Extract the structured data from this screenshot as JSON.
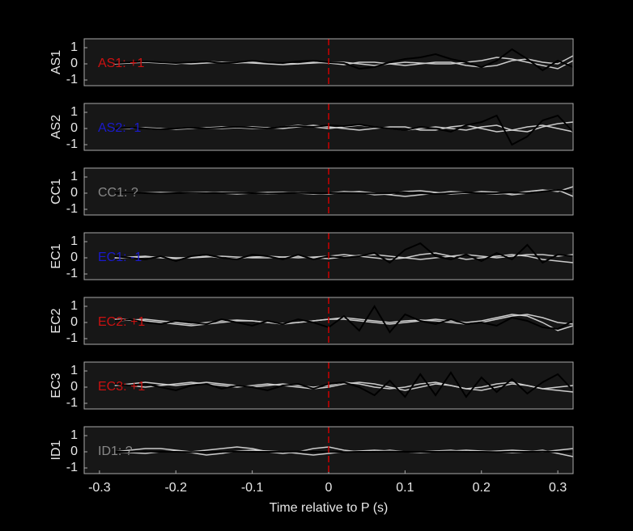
{
  "chart_data": [
    {
      "type": "line",
      "ylabel": "AS1",
      "label": "AS1: +1",
      "label_color": "#cc1111",
      "marker_x": 0,
      "marker_color": "#cc0000",
      "xlim": [
        -0.32,
        0.32
      ],
      "ylim": [
        -1.35,
        1.55
      ],
      "yticks": [
        -1,
        0,
        1
      ],
      "x": [
        -0.32,
        -0.3,
        -0.28,
        -0.26,
        -0.24,
        -0.22,
        -0.2,
        -0.18,
        -0.16,
        -0.14,
        -0.12,
        -0.1,
        -0.08,
        -0.06,
        -0.04,
        -0.02,
        0,
        0.02,
        0.04,
        0.06,
        0.08,
        0.1,
        0.12,
        0.14,
        0.16,
        0.18,
        0.2,
        0.22,
        0.24,
        0.26,
        0.28,
        0.3,
        0.32
      ],
      "series": [
        {
          "color": "#cccccc",
          "values": [
            null,
            null,
            0,
            0.1,
            0.1,
            0.05,
            0,
            0.1,
            0.15,
            0.1,
            0.05,
            0.1,
            0.1,
            0.05,
            0,
            0.05,
            0.1,
            0.1,
            0,
            -0.1,
            0,
            0.1,
            0.05,
            0,
            0,
            0.1,
            0.2,
            0.4,
            0.3,
            0.1,
            -0.1,
            -0.3,
            0.2
          ]
        },
        {
          "color": "#cccccc",
          "values": [
            null,
            null,
            0,
            0.05,
            0.1,
            0.1,
            0.05,
            0,
            0.05,
            0.1,
            0.1,
            0.05,
            0,
            -0.05,
            0,
            0.1,
            0.05,
            -0.05,
            0.1,
            0.1,
            0,
            -0.1,
            0,
            0.1,
            0.1,
            -0.1,
            -0.2,
            -0.1,
            0.2,
            0.3,
            0.1,
            0,
            0.5
          ]
        },
        {
          "color": "#000000",
          "values": [
            null,
            null,
            0.05,
            0.1,
            0.15,
            0.1,
            0.05,
            0.1,
            0.15,
            0.05,
            0.1,
            0.2,
            0.1,
            0.05,
            0.15,
            0.2,
            0.1,
            0.05,
            -0.3,
            -0.2,
            0.1,
            0.3,
            0.4,
            0.6,
            0.3,
            0.1,
            -0.2,
            0.2,
            0.9,
            0.3,
            -0.4,
            0.2,
            -0.2
          ]
        }
      ]
    },
    {
      "type": "line",
      "ylabel": "AS2",
      "label": "AS2: -1",
      "label_color": "#1a1acc",
      "marker_x": 0,
      "marker_color": "#cc0000",
      "xlim": [
        -0.32,
        0.32
      ],
      "ylim": [
        -1.35,
        1.55
      ],
      "yticks": [
        -1,
        0,
        1
      ],
      "x": [
        -0.32,
        -0.3,
        -0.28,
        -0.26,
        -0.24,
        -0.22,
        -0.2,
        -0.18,
        -0.16,
        -0.14,
        -0.12,
        -0.1,
        -0.08,
        -0.06,
        -0.04,
        -0.02,
        0,
        0.02,
        0.04,
        0.06,
        0.08,
        0.1,
        0.12,
        0.14,
        0.16,
        0.18,
        0.2,
        0.22,
        0.24,
        0.26,
        0.28,
        0.3,
        0.32
      ],
      "series": [
        {
          "color": "#cccccc",
          "values": [
            null,
            null,
            0,
            0,
            0.05,
            0,
            -0.05,
            0,
            0.05,
            0.1,
            0.05,
            0,
            0,
            0.1,
            0.2,
            0.1,
            0,
            0.1,
            0.2,
            0.1,
            0,
            -0.1,
            0,
            0.1,
            0,
            -0.1,
            0.1,
            0.2,
            -0.1,
            -0.2,
            0.1,
            0.3,
            0.4
          ]
        },
        {
          "color": "#cccccc",
          "values": [
            null,
            null,
            0,
            0.05,
            0,
            -0.05,
            0,
            0.05,
            0,
            0,
            0.05,
            0.1,
            0.05,
            0,
            0.1,
            0.2,
            0.1,
            0,
            -0.1,
            0,
            0.1,
            0.1,
            -0.1,
            -0.1,
            0.1,
            0.2,
            0,
            -0.2,
            -0.1,
            0.1,
            0.2,
            0,
            -0.2
          ]
        },
        {
          "color": "#000000",
          "values": [
            null,
            null,
            0.0,
            0.05,
            0.0,
            -0.05,
            0.0,
            0.05,
            0.0,
            0.05,
            0.1,
            0.05,
            0.0,
            0.1,
            0.15,
            0.1,
            0.2,
            0.15,
            0.25,
            0.1,
            0.0,
            -0.1,
            0.1,
            0.0,
            -0.2,
            0.2,
            0.4,
            0.8,
            -1.0,
            -0.5,
            0.5,
            0.8,
            -0.2
          ]
        }
      ]
    },
    {
      "type": "line",
      "ylabel": "CC1",
      "label": "CC1: ?",
      "label_color": "#888888",
      "marker_x": 0,
      "marker_color": "#cc0000",
      "xlim": [
        -0.32,
        0.32
      ],
      "ylim": [
        -1.35,
        1.55
      ],
      "yticks": [
        -1,
        0,
        1
      ],
      "x": [
        -0.32,
        -0.3,
        -0.28,
        -0.26,
        -0.24,
        -0.22,
        -0.2,
        -0.18,
        -0.16,
        -0.14,
        -0.12,
        -0.1,
        -0.08,
        -0.06,
        -0.04,
        -0.02,
        0,
        0.02,
        0.04,
        0.06,
        0.08,
        0.1,
        0.12,
        0.14,
        0.16,
        0.18,
        0.2,
        0.22,
        0.24,
        0.26,
        0.28,
        0.3,
        0.32
      ],
      "series": [
        {
          "color": "#cccccc",
          "values": [
            null,
            null,
            0,
            0,
            0.02,
            0.05,
            0.02,
            0,
            0,
            0.05,
            0.05,
            0,
            -0.05,
            0,
            0.05,
            0,
            -0.05,
            0.05,
            0.1,
            0,
            -0.1,
            -0.2,
            -0.1,
            0,
            0.1,
            0.05,
            0,
            -0.05,
            0,
            0.1,
            0.2,
            0.1,
            0.4
          ]
        },
        {
          "color": "#cccccc",
          "values": [
            null,
            null,
            0,
            0.02,
            0,
            -0.02,
            0,
            0.05,
            0.05,
            0,
            -0.05,
            0,
            0.05,
            0.05,
            0,
            -0.05,
            0,
            0.1,
            0.05,
            -0.1,
            -0.05,
            0.1,
            0.15,
            0.05,
            -0.05,
            0,
            0.1,
            0.05,
            -0.1,
            0,
            0.15,
            0.2,
            -0.2
          ]
        },
        {
          "color": "#000000",
          "values": [
            null,
            null,
            0,
            0.02,
            0,
            -0.02,
            0,
            0.02,
            0,
            0,
            0.02,
            0,
            -0.02,
            0,
            0.02,
            0,
            0,
            0.02,
            0,
            -0.02,
            0,
            0.05,
            0,
            -0.05,
            0,
            0.05,
            0,
            0,
            0.05,
            0,
            0.1,
            0.2,
            0.1
          ]
        }
      ]
    },
    {
      "type": "line",
      "ylabel": "EC1",
      "label": "EC1: -1",
      "label_color": "#1a1acc",
      "marker_x": 0,
      "marker_color": "#cc0000",
      "xlim": [
        -0.32,
        0.32
      ],
      "ylim": [
        -1.35,
        1.55
      ],
      "yticks": [
        -1,
        0,
        1
      ],
      "x": [
        -0.32,
        -0.3,
        -0.28,
        -0.26,
        -0.24,
        -0.22,
        -0.2,
        -0.18,
        -0.16,
        -0.14,
        -0.12,
        -0.1,
        -0.08,
        -0.06,
        -0.04,
        -0.02,
        0,
        0.02,
        0.04,
        0.06,
        0.08,
        0.1,
        0.12,
        0.14,
        0.16,
        0.18,
        0.2,
        0.22,
        0.24,
        0.26,
        0.28,
        0.3,
        0.32
      ],
      "series": [
        {
          "color": "#cccccc",
          "values": [
            null,
            null,
            0,
            0.05,
            0.1,
            0,
            -0.05,
            0.05,
            0.1,
            0,
            -0.05,
            0.05,
            0.1,
            0.05,
            0,
            0.05,
            0.1,
            0.2,
            0.1,
            0,
            -0.1,
            0,
            0.2,
            0.3,
            0.1,
            -0.1,
            0,
            0.1,
            0.2,
            0.1,
            -0.1,
            -0.2,
            -0.3
          ]
        },
        {
          "color": "#cccccc",
          "values": [
            null,
            null,
            0,
            0,
            0.05,
            0.05,
            0,
            0,
            0.05,
            0.1,
            0.05,
            0,
            0,
            0.05,
            0.1,
            0,
            -0.05,
            0.05,
            0.15,
            0.2,
            0.1,
            0,
            -0.1,
            0,
            0.1,
            0.2,
            0.1,
            0,
            0.1,
            0.2,
            0.2,
            0.1,
            0.2
          ]
        },
        {
          "color": "#000000",
          "values": [
            null,
            null,
            0.1,
            0.0,
            -0.1,
            0.1,
            -0.2,
            0.1,
            0.2,
            0.0,
            -0.1,
            0.2,
            0.1,
            -0.1,
            0.2,
            -0.1,
            0.1,
            0.0,
            0.1,
            0.3,
            -0.3,
            0.5,
            0.9,
            0.1,
            -0.1,
            0.2,
            -0.2,
            0.3,
            -0.1,
            0.8,
            -0.3,
            0.2,
            0.1
          ]
        }
      ]
    },
    {
      "type": "line",
      "ylabel": "EC2",
      "label": "EC2: +1",
      "label_color": "#cc1111",
      "marker_x": 0,
      "marker_color": "#cc0000",
      "xlim": [
        -0.32,
        0.32
      ],
      "ylim": [
        -1.35,
        1.55
      ],
      "yticks": [
        -1,
        0,
        1
      ],
      "x": [
        -0.32,
        -0.3,
        -0.28,
        -0.26,
        -0.24,
        -0.22,
        -0.2,
        -0.18,
        -0.16,
        -0.14,
        -0.12,
        -0.1,
        -0.08,
        -0.06,
        -0.04,
        -0.02,
        0,
        0.02,
        0.04,
        0.06,
        0.08,
        0.1,
        0.12,
        0.14,
        0.16,
        0.18,
        0.2,
        0.22,
        0.24,
        0.26,
        0.28,
        0.3,
        0.32
      ],
      "series": [
        {
          "color": "#cccccc",
          "values": [
            null,
            null,
            0.2,
            0.2,
            0.1,
            0,
            -0.1,
            -0.2,
            -0.1,
            0,
            0.1,
            0.1,
            0,
            -0.1,
            0,
            0.1,
            0.2,
            0.2,
            0.1,
            0,
            -0.1,
            0,
            0.1,
            0.2,
            0.1,
            0,
            0.1,
            0.3,
            0.5,
            0.4,
            0,
            -0.5,
            -0.2
          ]
        },
        {
          "color": "#cccccc",
          "values": [
            null,
            null,
            0.1,
            0.15,
            0.2,
            0.1,
            0,
            -0.1,
            0,
            0.1,
            0.15,
            0.1,
            0,
            -0.05,
            0,
            0.1,
            0.2,
            0.3,
            0.2,
            0.1,
            0,
            0.1,
            0.15,
            0.1,
            0,
            -0.1,
            0,
            0.2,
            0.4,
            0.5,
            0.3,
            0,
            -0.1
          ]
        },
        {
          "color": "#000000",
          "values": [
            null,
            null,
            0.1,
            0.2,
            0.0,
            -0.1,
            0.1,
            0.0,
            -0.1,
            0.2,
            0.0,
            -0.2,
            0.1,
            -0.1,
            0.2,
            0.0,
            -0.3,
            0.4,
            -0.5,
            1.0,
            -0.6,
            0.5,
            0.1,
            -0.1,
            0.2,
            -0.1,
            0.0,
            -0.2,
            0.3,
            0.1,
            -0.3,
            -0.4,
            0.1
          ]
        }
      ]
    },
    {
      "type": "line",
      "ylabel": "EC3",
      "label": "EC3: +1",
      "label_color": "#cc1111",
      "marker_x": 0,
      "marker_color": "#cc0000",
      "xlim": [
        -0.32,
        0.32
      ],
      "ylim": [
        -1.35,
        1.55
      ],
      "yticks": [
        -1,
        0,
        1
      ],
      "x": [
        -0.32,
        -0.3,
        -0.28,
        -0.26,
        -0.24,
        -0.22,
        -0.2,
        -0.18,
        -0.16,
        -0.14,
        -0.12,
        -0.1,
        -0.08,
        -0.06,
        -0.04,
        -0.02,
        0,
        0.02,
        0.04,
        0.06,
        0.08,
        0.1,
        0.12,
        0.14,
        0.16,
        0.18,
        0.2,
        0.22,
        0.24,
        0.26,
        0.28,
        0.3,
        0.32
      ],
      "series": [
        {
          "color": "#cccccc",
          "values": [
            null,
            null,
            0.1,
            0.2,
            0.3,
            0.2,
            0.1,
            0.2,
            0.3,
            0.2,
            0.1,
            0,
            0.1,
            0.2,
            0.1,
            0,
            0.1,
            0.3,
            0.2,
            0,
            -0.1,
            0,
            0.2,
            0.3,
            0.1,
            -0.1,
            0,
            0.2,
            0.3,
            0.1,
            -0.1,
            0,
            0.1
          ]
        },
        {
          "color": "#cccccc",
          "values": [
            null,
            null,
            0.2,
            0.1,
            0,
            0.1,
            0.2,
            0.3,
            0.2,
            0.1,
            0,
            0.1,
            0.2,
            0.1,
            0,
            -0.1,
            0,
            0.2,
            0.3,
            0.2,
            0,
            -0.2,
            0,
            0.2,
            0.1,
            -0.1,
            -0.2,
            0,
            0.2,
            0.1,
            -0.1,
            -0.2,
            -0.3
          ]
        },
        {
          "color": "#000000",
          "values": [
            null,
            null,
            0.2,
            0.1,
            0.2,
            0.0,
            -0.2,
            0.1,
            0.2,
            -0.1,
            0.1,
            0.0,
            -0.2,
            0.1,
            0.2,
            -0.1,
            0.2,
            0.3,
            0.0,
            -0.5,
            0.4,
            -0.6,
            0.8,
            -0.5,
            0.9,
            -0.6,
            0.6,
            -0.3,
            0.5,
            -0.4,
            0.3,
            0.8,
            -0.2
          ]
        }
      ]
    },
    {
      "type": "line",
      "ylabel": "ID1",
      "label": "ID1: ?",
      "label_color": "#888888",
      "marker_x": 0,
      "marker_color": "#cc0000",
      "xlim": [
        -0.32,
        0.32
      ],
      "ylim": [
        -1.35,
        1.55
      ],
      "yticks": [
        -1,
        0,
        1
      ],
      "xticks": [
        -0.3,
        -0.2,
        -0.1,
        0,
        0.1,
        0.2,
        0.3
      ],
      "xlabel": "Time relative to P (s)",
      "x": [
        -0.32,
        -0.3,
        -0.28,
        -0.26,
        -0.24,
        -0.22,
        -0.2,
        -0.18,
        -0.16,
        -0.14,
        -0.12,
        -0.1,
        -0.08,
        -0.06,
        -0.04,
        -0.02,
        0,
        0.02,
        0.04,
        0.06,
        0.08,
        0.1,
        0.12,
        0.14,
        0.16,
        0.18,
        0.2,
        0.22,
        0.24,
        0.26,
        0.28,
        0.3,
        0.32
      ],
      "series": [
        {
          "color": "#cccccc",
          "values": [
            null,
            null,
            0,
            0.1,
            0.2,
            0.2,
            0.1,
            0,
            0.1,
            0.2,
            0.3,
            0.2,
            0,
            -0.1,
            0,
            0.2,
            0.3,
            0.1,
            0,
            0,
            0.1,
            0,
            0,
            0.05,
            0.1,
            0,
            0,
            0.05,
            0.1,
            0.05,
            0,
            0.1,
            0.2
          ]
        },
        {
          "color": "#cccccc",
          "values": [
            null,
            null,
            0,
            -0.05,
            -0.1,
            0,
            0.05,
            -0.05,
            -0.2,
            -0.1,
            0.05,
            0.1,
            0.05,
            0,
            -0.1,
            -0.2,
            -0.1,
            0,
            0.05,
            0.1,
            0.05,
            0,
            -0.05,
            0,
            0.05,
            0.1,
            0.05,
            0,
            -0.05,
            0,
            0.1,
            -0.1,
            -0.3
          ]
        },
        {
          "color": "#000000",
          "values": [
            null,
            null,
            0,
            0,
            0.02,
            0,
            0,
            -0.02,
            0,
            0,
            0.02,
            0,
            0,
            0,
            0.02,
            0,
            0,
            -0.02,
            0,
            0,
            0.02,
            0,
            0,
            0,
            0.02,
            0,
            0,
            -0.02,
            0,
            0,
            0.02,
            0,
            0
          ]
        }
      ]
    }
  ]
}
